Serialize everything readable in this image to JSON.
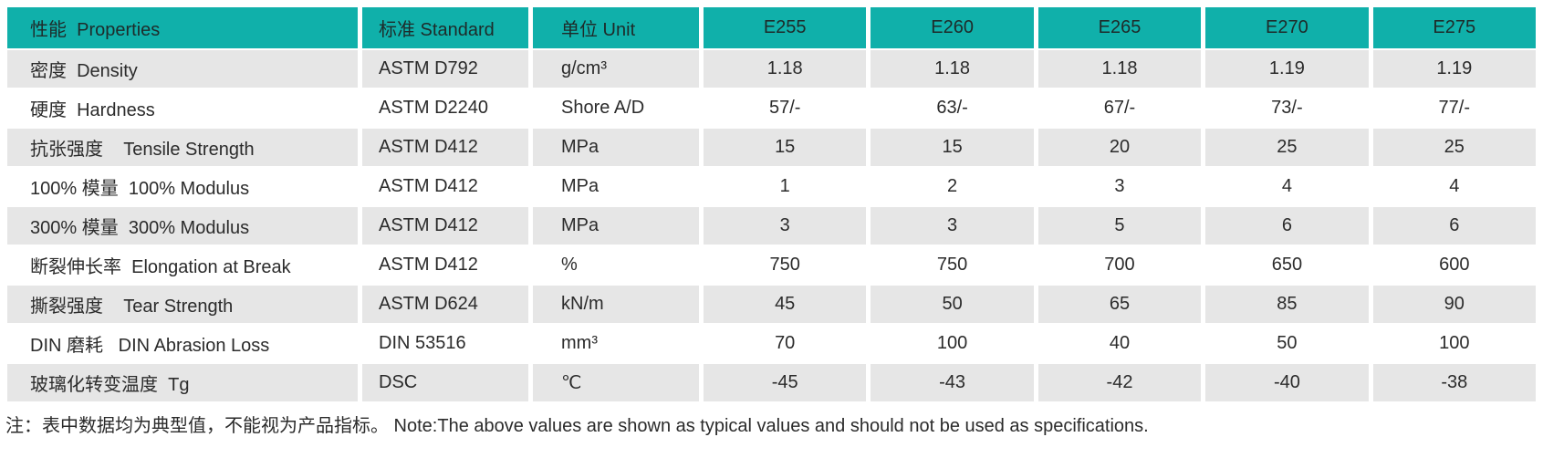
{
  "colors": {
    "header_bg": "#10B0AA",
    "row_alt_bg": "#E6E6E6",
    "row_bg": "#FFFFFF",
    "text": "#2B2B2B"
  },
  "table": {
    "columns": [
      "性能  Properties",
      "标准 Standard",
      "单位 Unit",
      "E255",
      "E260",
      "E265",
      "E270",
      "E275"
    ],
    "rows": [
      {
        "property": "密度  Density",
        "standard": "ASTM D792",
        "unit": "g/cm³",
        "values": [
          "1.18",
          "1.18",
          "1.18",
          "1.19",
          "1.19"
        ]
      },
      {
        "property": "硬度  Hardness",
        "standard": "ASTM D2240",
        "unit": "Shore A/D",
        "values": [
          "57/-",
          "63/-",
          "67/-",
          "73/-",
          "77/-"
        ]
      },
      {
        "property": "抗张强度    Tensile Strength",
        "standard": "ASTM D412",
        "unit": "MPa",
        "values": [
          "15",
          "15",
          "20",
          "25",
          "25"
        ]
      },
      {
        "property": "100% 模量  100% Modulus",
        "standard": "ASTM D412",
        "unit": "MPa",
        "values": [
          "1",
          "2",
          "3",
          "4",
          "4"
        ]
      },
      {
        "property": "300% 模量  300% Modulus",
        "standard": "ASTM D412",
        "unit": "MPa",
        "values": [
          "3",
          "3",
          "5",
          "6",
          "6"
        ]
      },
      {
        "property": "断裂伸长率  Elongation at Break",
        "standard": "ASTM D412",
        "unit": "%",
        "values": [
          "750",
          "750",
          "700",
          "650",
          "600"
        ]
      },
      {
        "property": "撕裂强度    Tear Strength",
        "standard": "ASTM D624",
        "unit": "kN/m",
        "values": [
          "45",
          "50",
          "65",
          "85",
          "90"
        ]
      },
      {
        "property": "DIN 磨耗   DIN Abrasion Loss",
        "standard": "DIN 53516",
        "unit": "mm³",
        "values": [
          "70",
          "100",
          "40",
          "50",
          "100"
        ]
      },
      {
        "property": "玻璃化转变温度  Tg",
        "standard": "DSC",
        "unit": "℃",
        "values": [
          "-45",
          "-43",
          "-42",
          "-40",
          "-38"
        ]
      }
    ]
  },
  "note": {
    "text": "注：表中数据均为典型值，不能视为产品指标。 Note:The above values are shown as typical values and should not be used as specifications."
  }
}
